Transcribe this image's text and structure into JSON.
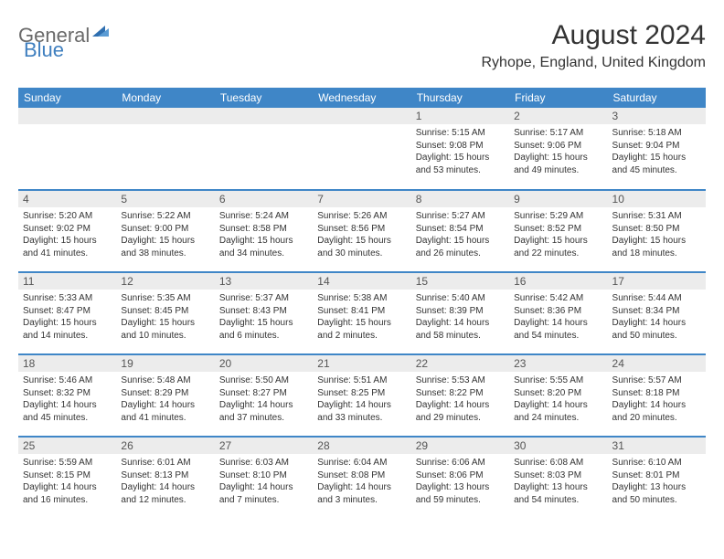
{
  "brand": {
    "part1": "General",
    "part2": "Blue"
  },
  "title": "August 2024",
  "location": "Ryhope, England, United Kingdom",
  "colors": {
    "header_bg": "#3f86c7",
    "header_text": "#ffffff",
    "row_border": "#3f86c7",
    "daynum_bg": "#ececec",
    "text": "#333333",
    "logo_gray": "#6a6a6a",
    "logo_blue": "#3f7fbf"
  },
  "typography": {
    "month_title_pt": 30,
    "location_pt": 16,
    "day_header_pt": 12,
    "daynum_pt": 12,
    "details_pt": 10
  },
  "day_headers": [
    "Sunday",
    "Monday",
    "Tuesday",
    "Wednesday",
    "Thursday",
    "Friday",
    "Saturday"
  ],
  "weeks": [
    [
      null,
      null,
      null,
      null,
      {
        "num": "1",
        "sunrise": "Sunrise: 5:15 AM",
        "sunset": "Sunset: 9:08 PM",
        "day1": "Daylight: 15 hours",
        "day2": "and 53 minutes."
      },
      {
        "num": "2",
        "sunrise": "Sunrise: 5:17 AM",
        "sunset": "Sunset: 9:06 PM",
        "day1": "Daylight: 15 hours",
        "day2": "and 49 minutes."
      },
      {
        "num": "3",
        "sunrise": "Sunrise: 5:18 AM",
        "sunset": "Sunset: 9:04 PM",
        "day1": "Daylight: 15 hours",
        "day2": "and 45 minutes."
      }
    ],
    [
      {
        "num": "4",
        "sunrise": "Sunrise: 5:20 AM",
        "sunset": "Sunset: 9:02 PM",
        "day1": "Daylight: 15 hours",
        "day2": "and 41 minutes."
      },
      {
        "num": "5",
        "sunrise": "Sunrise: 5:22 AM",
        "sunset": "Sunset: 9:00 PM",
        "day1": "Daylight: 15 hours",
        "day2": "and 38 minutes."
      },
      {
        "num": "6",
        "sunrise": "Sunrise: 5:24 AM",
        "sunset": "Sunset: 8:58 PM",
        "day1": "Daylight: 15 hours",
        "day2": "and 34 minutes."
      },
      {
        "num": "7",
        "sunrise": "Sunrise: 5:26 AM",
        "sunset": "Sunset: 8:56 PM",
        "day1": "Daylight: 15 hours",
        "day2": "and 30 minutes."
      },
      {
        "num": "8",
        "sunrise": "Sunrise: 5:27 AM",
        "sunset": "Sunset: 8:54 PM",
        "day1": "Daylight: 15 hours",
        "day2": "and 26 minutes."
      },
      {
        "num": "9",
        "sunrise": "Sunrise: 5:29 AM",
        "sunset": "Sunset: 8:52 PM",
        "day1": "Daylight: 15 hours",
        "day2": "and 22 minutes."
      },
      {
        "num": "10",
        "sunrise": "Sunrise: 5:31 AM",
        "sunset": "Sunset: 8:50 PM",
        "day1": "Daylight: 15 hours",
        "day2": "and 18 minutes."
      }
    ],
    [
      {
        "num": "11",
        "sunrise": "Sunrise: 5:33 AM",
        "sunset": "Sunset: 8:47 PM",
        "day1": "Daylight: 15 hours",
        "day2": "and 14 minutes."
      },
      {
        "num": "12",
        "sunrise": "Sunrise: 5:35 AM",
        "sunset": "Sunset: 8:45 PM",
        "day1": "Daylight: 15 hours",
        "day2": "and 10 minutes."
      },
      {
        "num": "13",
        "sunrise": "Sunrise: 5:37 AM",
        "sunset": "Sunset: 8:43 PM",
        "day1": "Daylight: 15 hours",
        "day2": "and 6 minutes."
      },
      {
        "num": "14",
        "sunrise": "Sunrise: 5:38 AM",
        "sunset": "Sunset: 8:41 PM",
        "day1": "Daylight: 15 hours",
        "day2": "and 2 minutes."
      },
      {
        "num": "15",
        "sunrise": "Sunrise: 5:40 AM",
        "sunset": "Sunset: 8:39 PM",
        "day1": "Daylight: 14 hours",
        "day2": "and 58 minutes."
      },
      {
        "num": "16",
        "sunrise": "Sunrise: 5:42 AM",
        "sunset": "Sunset: 8:36 PM",
        "day1": "Daylight: 14 hours",
        "day2": "and 54 minutes."
      },
      {
        "num": "17",
        "sunrise": "Sunrise: 5:44 AM",
        "sunset": "Sunset: 8:34 PM",
        "day1": "Daylight: 14 hours",
        "day2": "and 50 minutes."
      }
    ],
    [
      {
        "num": "18",
        "sunrise": "Sunrise: 5:46 AM",
        "sunset": "Sunset: 8:32 PM",
        "day1": "Daylight: 14 hours",
        "day2": "and 45 minutes."
      },
      {
        "num": "19",
        "sunrise": "Sunrise: 5:48 AM",
        "sunset": "Sunset: 8:29 PM",
        "day1": "Daylight: 14 hours",
        "day2": "and 41 minutes."
      },
      {
        "num": "20",
        "sunrise": "Sunrise: 5:50 AM",
        "sunset": "Sunset: 8:27 PM",
        "day1": "Daylight: 14 hours",
        "day2": "and 37 minutes."
      },
      {
        "num": "21",
        "sunrise": "Sunrise: 5:51 AM",
        "sunset": "Sunset: 8:25 PM",
        "day1": "Daylight: 14 hours",
        "day2": "and 33 minutes."
      },
      {
        "num": "22",
        "sunrise": "Sunrise: 5:53 AM",
        "sunset": "Sunset: 8:22 PM",
        "day1": "Daylight: 14 hours",
        "day2": "and 29 minutes."
      },
      {
        "num": "23",
        "sunrise": "Sunrise: 5:55 AM",
        "sunset": "Sunset: 8:20 PM",
        "day1": "Daylight: 14 hours",
        "day2": "and 24 minutes."
      },
      {
        "num": "24",
        "sunrise": "Sunrise: 5:57 AM",
        "sunset": "Sunset: 8:18 PM",
        "day1": "Daylight: 14 hours",
        "day2": "and 20 minutes."
      }
    ],
    [
      {
        "num": "25",
        "sunrise": "Sunrise: 5:59 AM",
        "sunset": "Sunset: 8:15 PM",
        "day1": "Daylight: 14 hours",
        "day2": "and 16 minutes."
      },
      {
        "num": "26",
        "sunrise": "Sunrise: 6:01 AM",
        "sunset": "Sunset: 8:13 PM",
        "day1": "Daylight: 14 hours",
        "day2": "and 12 minutes."
      },
      {
        "num": "27",
        "sunrise": "Sunrise: 6:03 AM",
        "sunset": "Sunset: 8:10 PM",
        "day1": "Daylight: 14 hours",
        "day2": "and 7 minutes."
      },
      {
        "num": "28",
        "sunrise": "Sunrise: 6:04 AM",
        "sunset": "Sunset: 8:08 PM",
        "day1": "Daylight: 14 hours",
        "day2": "and 3 minutes."
      },
      {
        "num": "29",
        "sunrise": "Sunrise: 6:06 AM",
        "sunset": "Sunset: 8:06 PM",
        "day1": "Daylight: 13 hours",
        "day2": "and 59 minutes."
      },
      {
        "num": "30",
        "sunrise": "Sunrise: 6:08 AM",
        "sunset": "Sunset: 8:03 PM",
        "day1": "Daylight: 13 hours",
        "day2": "and 54 minutes."
      },
      {
        "num": "31",
        "sunrise": "Sunrise: 6:10 AM",
        "sunset": "Sunset: 8:01 PM",
        "day1": "Daylight: 13 hours",
        "day2": "and 50 minutes."
      }
    ]
  ]
}
